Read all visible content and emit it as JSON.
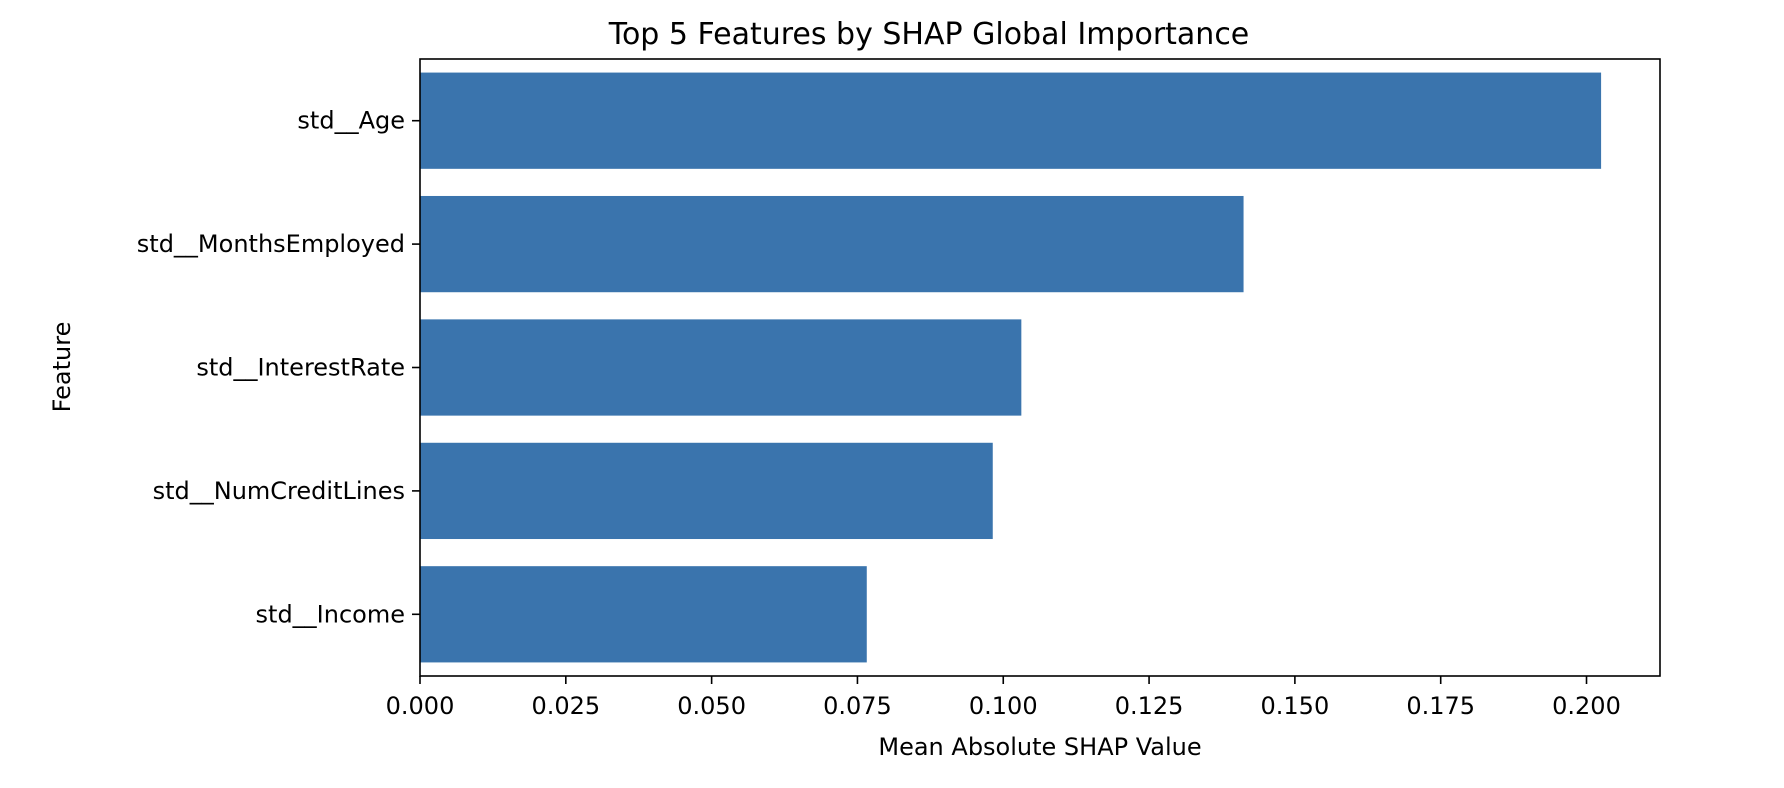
{
  "chart_data": {
    "type": "bar",
    "orientation": "horizontal",
    "title": "Top 5 Features by SHAP Global Importance",
    "xlabel": "Mean Absolute SHAP Value",
    "ylabel": "Feature",
    "categories": [
      "std__Age",
      "std__MonthsEmployed",
      "std__InterestRate",
      "std__NumCreditLines",
      "std__Income"
    ],
    "values": [
      0.2025,
      0.1412,
      0.1031,
      0.0982,
      0.0766
    ],
    "xlim": [
      0,
      0.2126
    ],
    "xticks": [
      0.0,
      0.025,
      0.05,
      0.075,
      0.1,
      0.125,
      0.15,
      0.175,
      0.2
    ],
    "xtick_labels": [
      "0.000",
      "0.025",
      "0.050",
      "0.075",
      "0.100",
      "0.125",
      "0.150",
      "0.175",
      "0.200"
    ],
    "bar_color": "#3a74ad",
    "grid": false,
    "legend": "none"
  }
}
